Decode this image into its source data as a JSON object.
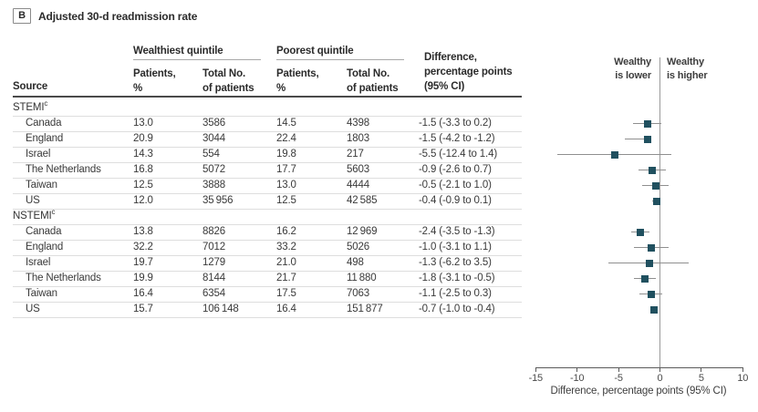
{
  "panel": {
    "letter": "B",
    "title": "Adjusted 30-d readmission rate"
  },
  "table": {
    "source_header": "Source",
    "groups": [
      {
        "label": "Wealthiest quintile",
        "sub1": "Patients,\n%",
        "sub2": "Total No.\nof patients"
      },
      {
        "label": "Poorest quintile",
        "sub1": "Patients,\n%",
        "sub2": "Total No.\nof patients"
      }
    ],
    "difference_header": "Difference,\npercentage points\n(95% CI)"
  },
  "plot_header": {
    "left": "Wealthy\nis lower",
    "right": "Wealthy\nis higher"
  },
  "chart_data": {
    "type": "forest",
    "axis": {
      "min": -15,
      "max": 10,
      "ticks": [
        -15,
        -10,
        -5,
        0,
        5,
        10
      ],
      "zero_ref": 0,
      "label": "Difference, percentage points (95% CI)"
    },
    "sections": [
      {
        "label": "STEMI",
        "sup": "c",
        "rows": [
          {
            "source": "Canada",
            "wealthy_pct": "13.0",
            "wealthy_total": "3586",
            "poor_pct": "14.5",
            "poor_total": "4398",
            "diff_label": "-1.5 (-3.3 to 0.2)",
            "estimate": -1.5,
            "ci_low": -3.3,
            "ci_high": 0.2
          },
          {
            "source": "England",
            "wealthy_pct": "20.9",
            "wealthy_total": "3044",
            "poor_pct": "22.4",
            "poor_total": "1803",
            "diff_label": "-1.5 (-4.2 to -1.2)",
            "estimate": -1.5,
            "ci_low": -4.2,
            "ci_high": -1.2
          },
          {
            "source": "Israel",
            "wealthy_pct": "14.3",
            "wealthy_total": "554",
            "poor_pct": "19.8",
            "poor_total": "217",
            "diff_label": "-5.5 (-12.4 to 1.4)",
            "estimate": -5.5,
            "ci_low": -12.4,
            "ci_high": 1.4
          },
          {
            "source": "The Netherlands",
            "wealthy_pct": "16.8",
            "wealthy_total": "5072",
            "poor_pct": "17.7",
            "poor_total": "5603",
            "diff_label": "-0.9 (-2.6 to 0.7)",
            "estimate": -0.9,
            "ci_low": -2.6,
            "ci_high": 0.7
          },
          {
            "source": "Taiwan",
            "wealthy_pct": "12.5",
            "wealthy_total": "3888",
            "poor_pct": "13.0",
            "poor_total": "4444",
            "diff_label": "-0.5 (-2.1 to 1.0)",
            "estimate": -0.5,
            "ci_low": -2.1,
            "ci_high": 1.0
          },
          {
            "source": "US",
            "wealthy_pct": "12.0",
            "wealthy_total": "35 956",
            "poor_pct": "12.5",
            "poor_total": "42 585",
            "diff_label": "-0.4 (-0.9 to 0.1)",
            "estimate": -0.4,
            "ci_low": -0.9,
            "ci_high": 0.1
          }
        ]
      },
      {
        "label": "NSTEMI",
        "sup": "c",
        "rows": [
          {
            "source": "Canada",
            "wealthy_pct": "13.8",
            "wealthy_total": "8826",
            "poor_pct": "16.2",
            "poor_total": "12 969",
            "diff_label": "-2.4 (-3.5 to -1.3)",
            "estimate": -2.4,
            "ci_low": -3.5,
            "ci_high": -1.3
          },
          {
            "source": "England",
            "wealthy_pct": "32.2",
            "wealthy_total": "7012",
            "poor_pct": "33.2",
            "poor_total": "5026",
            "diff_label": "-1.0 (-3.1 to 1.1)",
            "estimate": -1.0,
            "ci_low": -3.1,
            "ci_high": 1.1
          },
          {
            "source": "Israel",
            "wealthy_pct": "19.7",
            "wealthy_total": "1279",
            "poor_pct": "21.0",
            "poor_total": "498",
            "diff_label": "-1.3 (-6.2 to 3.5)",
            "estimate": -1.3,
            "ci_low": -6.2,
            "ci_high": 3.5
          },
          {
            "source": "The Netherlands",
            "wealthy_pct": "19.9",
            "wealthy_total": "8144",
            "poor_pct": "21.7",
            "poor_total": "11 880",
            "diff_label": "-1.8 (-3.1 to -0.5)",
            "estimate": -1.8,
            "ci_low": -3.1,
            "ci_high": -0.5
          },
          {
            "source": "Taiwan",
            "wealthy_pct": "16.4",
            "wealthy_total": "6354",
            "poor_pct": "17.5",
            "poor_total": "7063",
            "diff_label": "-1.1 (-2.5 to 0.3)",
            "estimate": -1.1,
            "ci_low": -2.5,
            "ci_high": 0.3
          },
          {
            "source": "US",
            "wealthy_pct": "15.7",
            "wealthy_total": "106 148",
            "poor_pct": "16.4",
            "poor_total": "151 877",
            "diff_label": "-0.7 (-1.0 to -0.4)",
            "estimate": -0.7,
            "ci_low": -1.0,
            "ci_high": -0.4
          }
        ]
      }
    ]
  },
  "colors": {
    "marker": "#20505f",
    "ci_line": "#8f8f8f",
    "zero_line": "#9a9a9a",
    "row_divider": "#dedede",
    "header_rule": "#4a4a4a",
    "text": "#3a3a3a"
  }
}
